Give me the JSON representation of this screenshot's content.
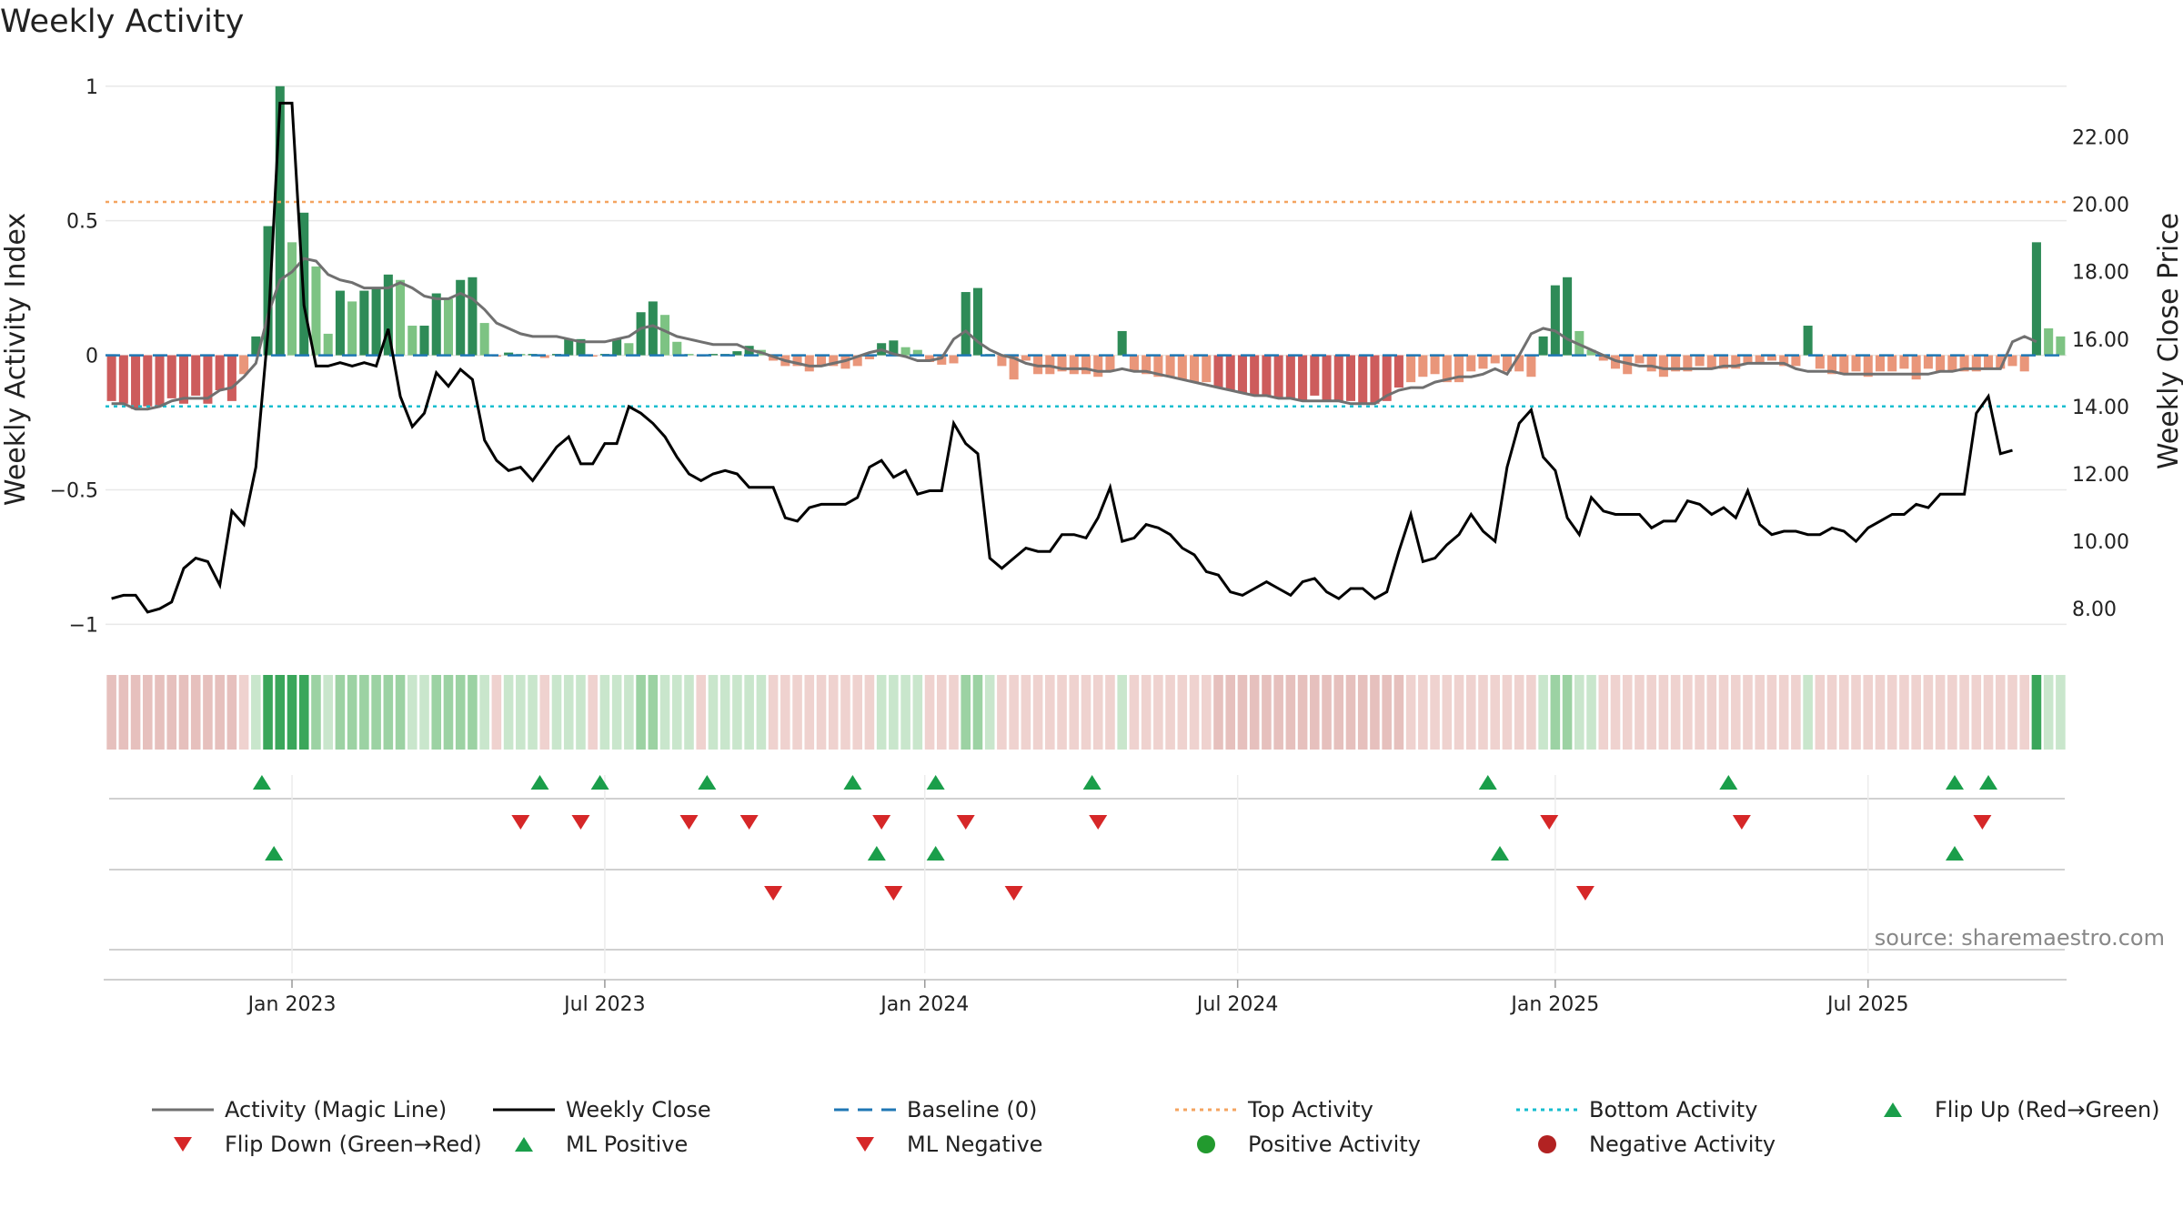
{
  "title": "Weekly Activity",
  "colors": {
    "strong_green": "#2e8b57",
    "light_green": "#7dc383",
    "strong_red": "#cd5c5c",
    "light_red": "#e9967a",
    "magic_line": "#707070",
    "close_line": "#000000",
    "baseline": "#1f77b4",
    "top_line": "#f4a460",
    "bottom_line": "#17becf",
    "marker_green": "#1a9e4a",
    "marker_red": "#d62728"
  },
  "chart_data": {
    "type": "combo bar + line",
    "y_left": {
      "label": "Weekly Activity Index",
      "ticks": [
        "1",
        "0.5",
        "0",
        "−0.5",
        "−1"
      ],
      "tick_values": [
        1,
        0.5,
        0,
        -0.5,
        -1
      ],
      "range": [
        -1.08,
        1.05
      ]
    },
    "y_right": {
      "label": "Weekly Close Price",
      "ticks": [
        "22.00",
        "20.00",
        "18.00",
        "16.00",
        "14.00",
        "12.00",
        "10.00",
        "8.00"
      ],
      "tick_values": [
        22,
        20,
        18,
        16,
        14,
        12,
        10,
        8
      ],
      "range": [
        6.9,
        23.9
      ]
    },
    "x_ticks": [
      "Jan 2023",
      "Jul 2023",
      "Jan 2024",
      "Jul 2024",
      "Jan 2025",
      "Jul 2025"
    ],
    "x_tick_weeks": [
      15,
      41,
      67.6,
      93.6,
      120,
      146
    ],
    "top_activity": 0.57,
    "bottom_activity": -0.19,
    "baseline": 0,
    "activity": [
      -0.17,
      -0.18,
      -0.2,
      -0.19,
      -0.19,
      -0.16,
      -0.18,
      -0.15,
      -0.18,
      -0.13,
      -0.17,
      -0.07,
      0.07,
      0.48,
      1.0,
      0.42,
      0.53,
      0.33,
      0.08,
      0.24,
      0.2,
      0.24,
      0.25,
      0.3,
      0.28,
      0.11,
      0.11,
      0.23,
      0.21,
      0.28,
      0.29,
      0.12,
      -0.005,
      0.01,
      0.005,
      0.005,
      -0.01,
      0.005,
      0.06,
      0.06,
      -0.005,
      0.005,
      0.06,
      0.045,
      0.16,
      0.2,
      0.15,
      0.05,
      0.005,
      -0.005,
      0.005,
      0.005,
      0.015,
      0.035,
      0.02,
      -0.02,
      -0.04,
      -0.04,
      -0.06,
      -0.04,
      -0.04,
      -0.05,
      -0.04,
      -0.015,
      0.045,
      0.055,
      0.03,
      0.02,
      -0.025,
      -0.035,
      -0.03,
      0.235,
      0.25,
      0.005,
      -0.04,
      -0.09,
      -0.02,
      -0.07,
      -0.07,
      -0.06,
      -0.07,
      -0.07,
      -0.08,
      -0.06,
      0.09,
      -0.06,
      -0.07,
      -0.08,
      -0.08,
      -0.09,
      -0.1,
      -0.1,
      -0.12,
      -0.13,
      -0.14,
      -0.15,
      -0.15,
      -0.16,
      -0.16,
      -0.17,
      -0.15,
      -0.17,
      -0.17,
      -0.17,
      -0.18,
      -0.18,
      -0.17,
      -0.12,
      -0.1,
      -0.08,
      -0.07,
      -0.1,
      -0.1,
      -0.06,
      -0.05,
      -0.03,
      -0.06,
      -0.06,
      -0.08,
      0.07,
      0.26,
      0.29,
      0.09,
      0.02,
      -0.02,
      -0.05,
      -0.07,
      -0.03,
      -0.06,
      -0.08,
      -0.06,
      -0.06,
      -0.04,
      -0.05,
      -0.05,
      -0.05,
      -0.03,
      -0.03,
      -0.02,
      -0.04,
      -0.04,
      0.11,
      -0.05,
      -0.07,
      -0.07,
      -0.06,
      -0.08,
      -0.06,
      -0.06,
      -0.05,
      -0.09,
      -0.05,
      -0.06,
      -0.06,
      -0.06,
      -0.06,
      -0.05,
      -0.05,
      -0.04,
      -0.06,
      0.42,
      0.1,
      0.07
    ],
    "magic_line": [
      -0.18,
      -0.18,
      -0.2,
      -0.2,
      -0.19,
      -0.17,
      -0.16,
      -0.16,
      -0.16,
      -0.13,
      -0.12,
      -0.08,
      -0.03,
      0.15,
      0.28,
      0.31,
      0.36,
      0.35,
      0.3,
      0.28,
      0.27,
      0.25,
      0.25,
      0.25,
      0.27,
      0.25,
      0.22,
      0.21,
      0.21,
      0.23,
      0.21,
      0.17,
      0.12,
      0.1,
      0.08,
      0.07,
      0.07,
      0.07,
      0.06,
      0.05,
      0.05,
      0.05,
      0.06,
      0.07,
      0.1,
      0.11,
      0.09,
      0.07,
      0.06,
      0.05,
      0.04,
      0.04,
      0.04,
      0.02,
      0.01,
      -0.005,
      -0.02,
      -0.03,
      -0.04,
      -0.04,
      -0.03,
      -0.02,
      -0.005,
      0.01,
      0.02,
      0.005,
      -0.005,
      -0.02,
      -0.02,
      -0.01,
      0.06,
      0.09,
      0.05,
      0.02,
      0.0,
      -0.01,
      -0.03,
      -0.04,
      -0.04,
      -0.05,
      -0.05,
      -0.05,
      -0.06,
      -0.06,
      -0.05,
      -0.06,
      -0.06,
      -0.07,
      -0.08,
      -0.09,
      -0.1,
      -0.11,
      -0.12,
      -0.13,
      -0.14,
      -0.15,
      -0.15,
      -0.16,
      -0.16,
      -0.17,
      -0.17,
      -0.17,
      -0.17,
      -0.18,
      -0.18,
      -0.18,
      -0.15,
      -0.13,
      -0.12,
      -0.12,
      -0.1,
      -0.09,
      -0.08,
      -0.08,
      -0.07,
      -0.05,
      -0.07,
      0.0,
      0.08,
      0.1,
      0.09,
      0.06,
      0.04,
      0.02,
      0.0,
      -0.02,
      -0.03,
      -0.04,
      -0.04,
      -0.05,
      -0.05,
      -0.05,
      -0.05,
      -0.05,
      -0.04,
      -0.04,
      -0.03,
      -0.03,
      -0.03,
      -0.03,
      -0.05,
      -0.06,
      -0.06,
      -0.06,
      -0.07,
      -0.07,
      -0.07,
      -0.07,
      -0.07,
      -0.07,
      -0.07,
      -0.07,
      -0.06,
      -0.06,
      -0.05,
      -0.05,
      -0.05,
      -0.05,
      0.05,
      0.07,
      0.05
    ],
    "weekly_close": [
      8.3,
      8.4,
      8.4,
      7.9,
      8.0,
      8.2,
      9.2,
      9.5,
      9.4,
      8.7,
      10.9,
      10.5,
      12.2,
      16.2,
      23.0,
      23.0,
      17.0,
      15.2,
      15.2,
      15.3,
      15.2,
      15.3,
      15.2,
      16.3,
      14.3,
      13.4,
      13.8,
      15.0,
      14.6,
      15.1,
      14.8,
      13.0,
      12.4,
      12.1,
      12.2,
      11.8,
      12.3,
      12.8,
      13.1,
      12.3,
      12.3,
      12.9,
      12.9,
      14.0,
      13.8,
      13.5,
      13.1,
      12.5,
      12.0,
      11.8,
      12.0,
      12.1,
      12.0,
      11.6,
      11.6,
      11.6,
      10.7,
      10.6,
      11.0,
      11.1,
      11.1,
      11.1,
      11.3,
      12.2,
      12.4,
      11.9,
      12.1,
      11.4,
      11.5,
      11.5,
      13.5,
      12.9,
      12.6,
      9.5,
      9.2,
      9.5,
      9.8,
      9.7,
      9.7,
      10.2,
      10.2,
      10.1,
      10.7,
      11.6,
      10.0,
      10.1,
      10.5,
      10.4,
      10.2,
      9.8,
      9.6,
      9.1,
      9.0,
      8.5,
      8.4,
      8.6,
      8.8,
      8.6,
      8.4,
      8.8,
      8.9,
      8.5,
      8.3,
      8.6,
      8.6,
      8.3,
      8.5,
      9.7,
      10.8,
      9.4,
      9.5,
      9.9,
      10.2,
      10.8,
      10.3,
      10.0,
      12.2,
      13.5,
      13.9,
      12.5,
      12.1,
      10.7,
      10.2,
      11.3,
      10.9,
      10.8,
      10.8,
      10.8,
      10.4,
      10.6,
      10.6,
      11.2,
      11.1,
      10.8,
      11.0,
      10.7,
      11.5,
      10.5,
      10.2,
      10.3,
      10.3,
      10.2,
      10.2,
      10.4,
      10.3,
      10.0,
      10.4,
      10.6,
      10.8,
      10.8,
      11.1,
      11.0,
      11.4,
      11.4,
      11.4,
      13.8,
      14.3,
      12.6,
      12.7
    ],
    "markers": {
      "flip_up": [
        12.5,
        35.6,
        40.6,
        49.5,
        61.6,
        68.5,
        81.5,
        114.4,
        134.4,
        153.2,
        156.0
      ],
      "flip_down": [
        34.0,
        39.0,
        48.0,
        53.0,
        64.0,
        71.0,
        82.0,
        119.5,
        135.5,
        155.5
      ],
      "ml_positive": [
        13.5,
        63.6,
        68.5,
        115.4,
        153.2
      ],
      "ml_negative": [
        55.0,
        65.0,
        75.0,
        122.5
      ]
    },
    "source": "source: sharemaestro.com"
  },
  "legend": [
    {
      "label": "Activity (Magic Line)",
      "symbol": "line-gray"
    },
    {
      "label": "Weekly Close",
      "symbol": "line-black"
    },
    {
      "label": "Baseline (0)",
      "symbol": "dash-blue"
    },
    {
      "label": "Top Activity",
      "symbol": "dot-orange"
    },
    {
      "label": "Bottom Activity",
      "symbol": "dot-cyan"
    },
    {
      "label": "Flip Up (Red→Green)",
      "symbol": "triangle-up-green"
    },
    {
      "label": "Flip Down (Green→Red)",
      "symbol": "triangle-down-red"
    },
    {
      "label": "ML Positive",
      "symbol": "triangle-up-green"
    },
    {
      "label": "ML Negative",
      "symbol": "triangle-down-red"
    },
    {
      "label": "Positive Activity",
      "symbol": "circle-green"
    },
    {
      "label": "Negative Activity",
      "symbol": "circle-red"
    }
  ]
}
